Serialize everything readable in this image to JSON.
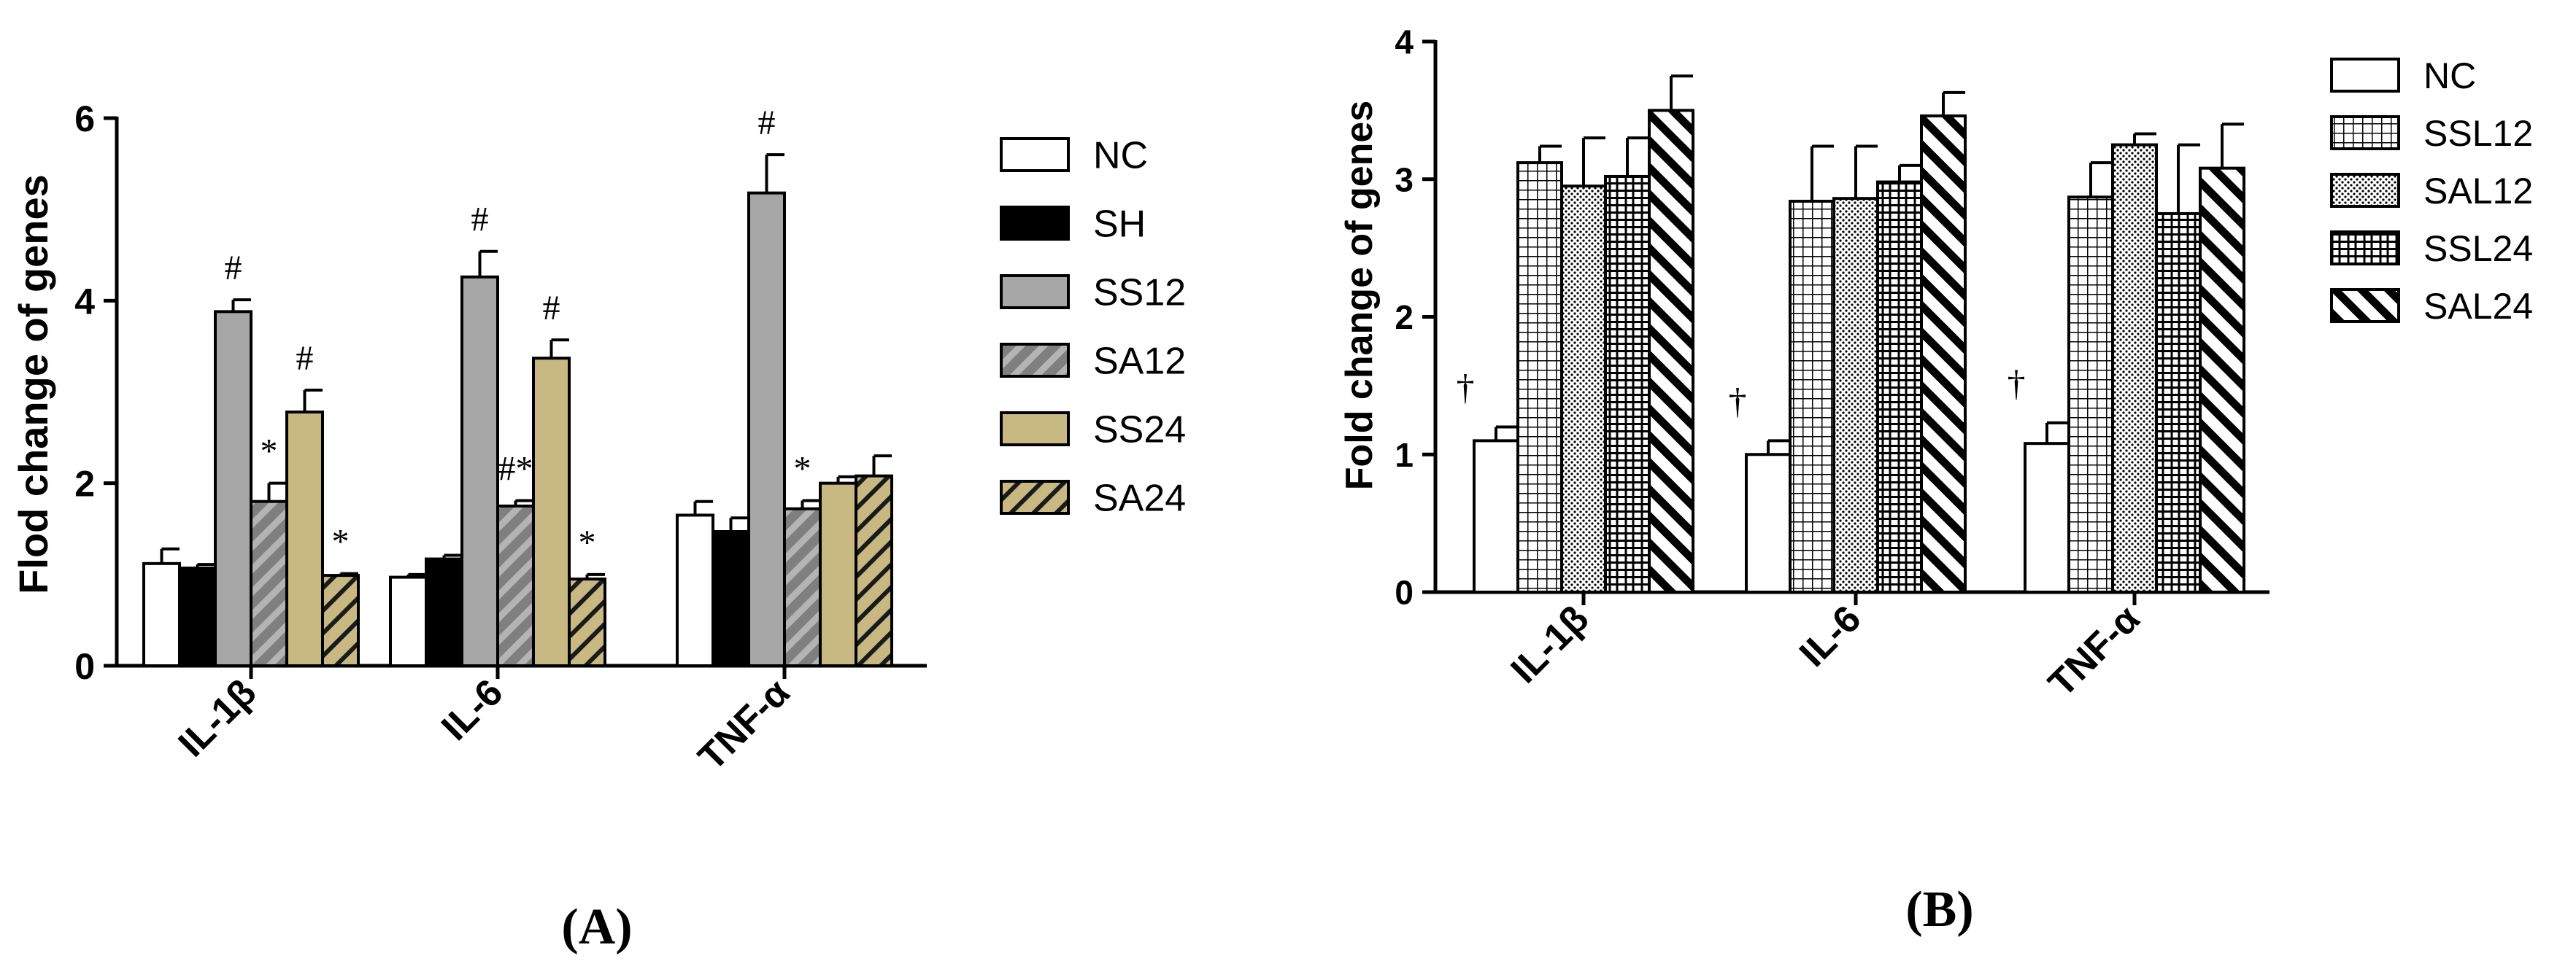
{
  "chart_data": [
    {
      "type": "bar",
      "panel_label": "A",
      "ylabel": "Flod change of genes",
      "xlabel": "",
      "ylim": [
        0,
        6
      ],
      "yticks": [
        "0",
        "2",
        "4",
        "6"
      ],
      "categories": [
        "IL-1β",
        "IL-6",
        "TNF-α"
      ],
      "legend_position": "right",
      "series": [
        {
          "name": "NC",
          "fill": "white",
          "values": [
            1.12,
            0.97,
            1.65
          ],
          "errors": [
            0.16,
            0.03,
            0.15
          ],
          "marks": [
            "",
            "",
            ""
          ]
        },
        {
          "name": "SH",
          "fill": "black",
          "values": [
            1.07,
            1.17,
            1.47
          ],
          "errors": [
            0.04,
            0.04,
            0.15
          ],
          "marks": [
            "",
            "",
            ""
          ]
        },
        {
          "name": "SS12",
          "fill": "gray",
          "values": [
            3.88,
            4.26,
            5.18
          ],
          "errors": [
            0.13,
            0.28,
            0.42
          ],
          "marks": [
            "#",
            "#",
            "#"
          ]
        },
        {
          "name": "SA12",
          "fill": "gray-hatch",
          "values": [
            1.8,
            1.75,
            1.72
          ],
          "errors": [
            0.2,
            0.06,
            0.09
          ],
          "marks": [
            "*",
            "#*",
            "*"
          ]
        },
        {
          "name": "SS24",
          "fill": "khaki",
          "values": [
            2.78,
            3.37,
            2.0
          ],
          "errors": [
            0.24,
            0.2,
            0.07
          ],
          "marks": [
            "#",
            "#",
            ""
          ]
        },
        {
          "name": "SA24",
          "fill": "khaki-hatch",
          "values": [
            0.99,
            0.95,
            2.08
          ],
          "errors": [
            0.02,
            0.05,
            0.22
          ],
          "marks": [
            "*",
            "*",
            ""
          ]
        }
      ]
    },
    {
      "type": "bar",
      "panel_label": "B",
      "ylabel": "Fold change of genes",
      "xlabel": "",
      "ylim": [
        0,
        4
      ],
      "yticks": [
        "0",
        "1",
        "2",
        "3",
        "4"
      ],
      "categories": [
        "IL-1β",
        "IL-6",
        "TNF-α"
      ],
      "legend_position": "right",
      "series": [
        {
          "name": "NC",
          "fill": "white",
          "values": [
            1.1,
            1.0,
            1.08
          ],
          "errors": [
            0.1,
            0.1,
            0.15
          ],
          "marks": [
            "†",
            "†",
            "†"
          ]
        },
        {
          "name": "SSL12",
          "fill": "grid",
          "values": [
            3.12,
            2.84,
            2.87
          ],
          "errors": [
            0.12,
            0.4,
            0.25
          ],
          "marks": [
            "",
            "",
            ""
          ]
        },
        {
          "name": "SAL12",
          "fill": "dots",
          "values": [
            2.95,
            2.86,
            3.25
          ],
          "errors": [
            0.35,
            0.38,
            0.08
          ],
          "marks": [
            "",
            "",
            ""
          ]
        },
        {
          "name": "SSL24",
          "fill": "brick",
          "values": [
            3.02,
            2.98,
            2.75
          ],
          "errors": [
            0.28,
            0.12,
            0.5
          ],
          "marks": [
            "",
            "",
            ""
          ]
        },
        {
          "name": "SAL24",
          "fill": "backslash",
          "values": [
            3.5,
            3.46,
            3.08
          ],
          "errors": [
            0.25,
            0.17,
            0.32
          ],
          "marks": [
            "",
            "",
            ""
          ]
        }
      ]
    }
  ]
}
